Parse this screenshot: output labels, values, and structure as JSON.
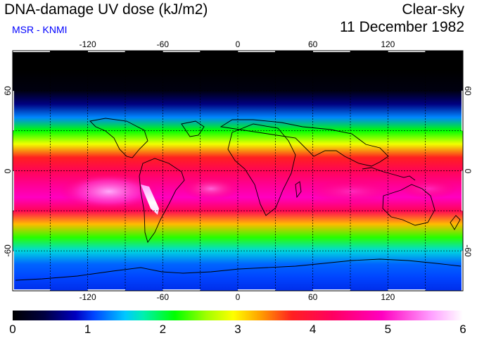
{
  "header": {
    "title": "DNA-damage UV dose (kJ/m2)",
    "subtitle": "MSR - KNMI",
    "condition": "Clear-sky",
    "date": "11 December 1982"
  },
  "map": {
    "projection": "equirectangular",
    "lon_range": [
      -180,
      180
    ],
    "lat_range": [
      -90,
      90
    ],
    "lon_ticks": [
      "-120",
      "-60",
      "0",
      "60",
      "120"
    ],
    "lat_ticks": [
      "60",
      "0",
      "-60"
    ],
    "grid_spacing_deg": 30
  },
  "chart_data": {
    "type": "heatmap",
    "title": "DNA-damage UV dose (kJ/m2)",
    "quantity": "Clear-sky DNA-damage UV dose",
    "units": "kJ/m2",
    "date": "11 December 1982",
    "colorbar": {
      "min": 0,
      "max": 6,
      "tick_labels": [
        "0",
        "1",
        "2",
        "3",
        "4",
        "5",
        "6"
      ]
    },
    "zonal_profile": {
      "latitudes": [
        90,
        75,
        60,
        50,
        40,
        30,
        20,
        10,
        0,
        -10,
        -20,
        -30,
        -40,
        -50,
        -60,
        -70,
        -80,
        -90
      ],
      "values": [
        0,
        0,
        0.1,
        0.6,
        1.3,
        2.2,
        2.9,
        3.7,
        4.2,
        4.6,
        4.9,
        4.2,
        3.2,
        2.3,
        1.6,
        1.2,
        1.1,
        1.0
      ]
    }
  },
  "colors": {
    "subtitle": "#0000ff",
    "grid": "#000000",
    "coastline": "#000000"
  }
}
